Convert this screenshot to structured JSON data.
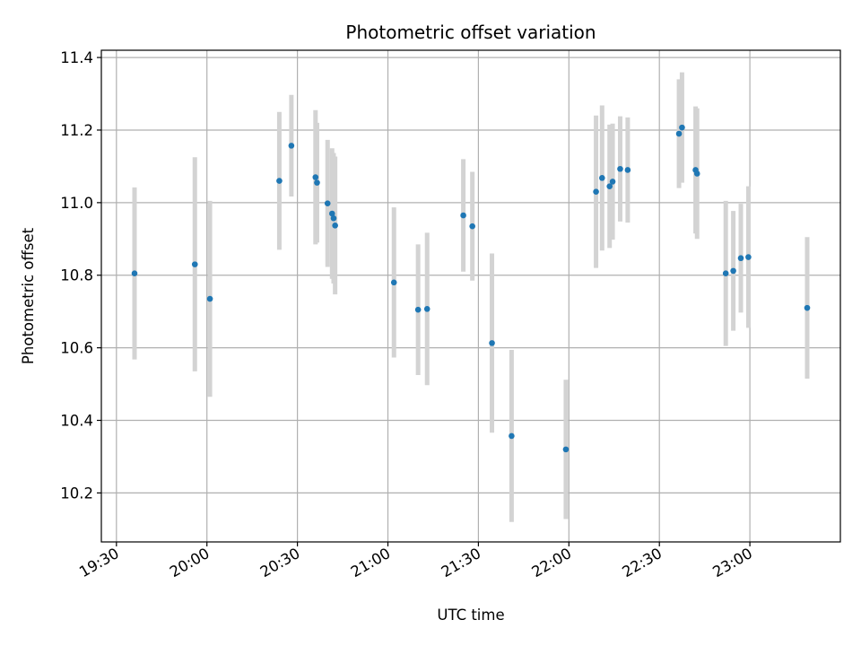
{
  "chart_data": {
    "type": "scatter",
    "title": "Photometric offset variation",
    "xlabel": "UTC time",
    "ylabel": "Photometric offset",
    "x_ticks": [
      "19:30",
      "20:00",
      "20:30",
      "21:00",
      "21:30",
      "22:00",
      "22:30",
      "23:00"
    ],
    "y_ticks": [
      "10.2",
      "10.4",
      "10.6",
      "10.8",
      "11.0",
      "11.2",
      "11.4"
    ],
    "xlim": [
      "19:25",
      "23:30"
    ],
    "ylim": [
      10.065,
      11.42
    ],
    "grid": true,
    "colors": {
      "point": "#1f77b4",
      "errorbar": "#d3d3d3",
      "grid": "#b0b0b0"
    },
    "points": [
      {
        "x": "19:36",
        "y": 10.805,
        "err": 0.237
      },
      {
        "x": "19:56",
        "y": 10.83,
        "err": 0.295
      },
      {
        "x": "20:01",
        "y": 10.735,
        "err": 0.27
      },
      {
        "x": "20:24",
        "y": 11.06,
        "err": 0.19
      },
      {
        "x": "20:28",
        "y": 11.157,
        "err": 0.14
      },
      {
        "x": "20:36",
        "y": 11.07,
        "err": 0.185
      },
      {
        "x": "20:36.5",
        "y": 11.055,
        "err": 0.165
      },
      {
        "x": "20:40",
        "y": 10.998,
        "err": 0.175
      },
      {
        "x": "20:41.5",
        "y": 10.97,
        "err": 0.18
      },
      {
        "x": "20:42",
        "y": 10.957,
        "err": 0.18
      },
      {
        "x": "20:42.5",
        "y": 10.937,
        "err": 0.19
      },
      {
        "x": "21:02",
        "y": 10.78,
        "err": 0.207
      },
      {
        "x": "21:10",
        "y": 10.705,
        "err": 0.18
      },
      {
        "x": "21:13",
        "y": 10.707,
        "err": 0.21
      },
      {
        "x": "21:25",
        "y": 10.965,
        "err": 0.155
      },
      {
        "x": "21:28",
        "y": 10.935,
        "err": 0.15
      },
      {
        "x": "21:34.5",
        "y": 10.613,
        "err": 0.247
      },
      {
        "x": "21:41",
        "y": 10.357,
        "err": 0.237
      },
      {
        "x": "21:59",
        "y": 10.32,
        "err": 0.192
      },
      {
        "x": "22:09",
        "y": 11.03,
        "err": 0.21
      },
      {
        "x": "22:11",
        "y": 11.068,
        "err": 0.2
      },
      {
        "x": "22:13.5",
        "y": 11.045,
        "err": 0.17
      },
      {
        "x": "22:14.5",
        "y": 11.058,
        "err": 0.16
      },
      {
        "x": "22:17",
        "y": 11.093,
        "err": 0.145
      },
      {
        "x": "22:19.5",
        "y": 11.09,
        "err": 0.145
      },
      {
        "x": "22:36.5",
        "y": 11.19,
        "err": 0.15
      },
      {
        "x": "22:37.5",
        "y": 11.207,
        "err": 0.152
      },
      {
        "x": "22:42",
        "y": 11.09,
        "err": 0.175
      },
      {
        "x": "22:42.5",
        "y": 11.08,
        "err": 0.18
      },
      {
        "x": "22:52",
        "y": 10.805,
        "err": 0.2
      },
      {
        "x": "22:54.5",
        "y": 10.812,
        "err": 0.165
      },
      {
        "x": "22:57",
        "y": 10.847,
        "err": 0.15
      },
      {
        "x": "22:59.5",
        "y": 10.85,
        "err": 0.195
      },
      {
        "x": "23:19",
        "y": 10.71,
        "err": 0.195
      }
    ]
  }
}
